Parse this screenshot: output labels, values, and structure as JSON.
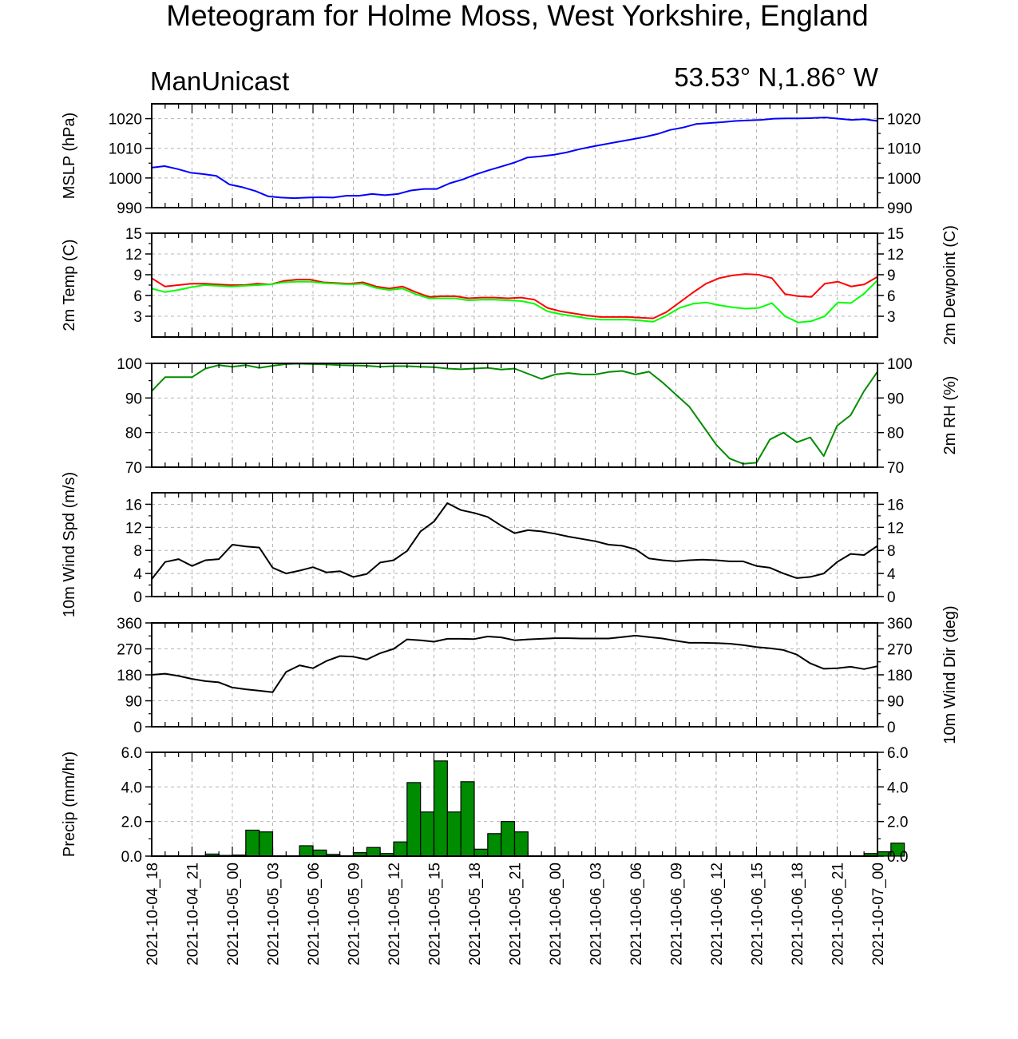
{
  "title": "Meteogram for Holme Moss, West Yorkshire, England",
  "model_label": "ManUnicast",
  "coords_label": "53.53° N,1.86° W",
  "colors": {
    "mslp": "#0000ff",
    "temp": "#ff0000",
    "dewpoint": "#00ff00",
    "rh": "#008c00",
    "wind": "#000000",
    "precip_fill": "#008c00",
    "grid": "#b4b4b4"
  },
  "chart_data": [
    {
      "type": "line",
      "ylabel_left": "MSLP (hPa)",
      "ylabel_right": "",
      "ylim": [
        990,
        1025
      ],
      "yticks": [
        990,
        1000,
        1010,
        1020
      ],
      "yticklabels": [
        "990",
        "1000",
        "1010",
        "1020"
      ],
      "grid": true,
      "series": [
        {
          "color": "mslp",
          "values": [
            1003.5,
            1004.0,
            1003.0,
            1001.8,
            1001.3,
            1000.7,
            997.8,
            996.9,
            995.6,
            993.8,
            993.4,
            993.2,
            993.4,
            993.5,
            993.4,
            994.0,
            994.0,
            994.6,
            994.2,
            994.6,
            995.8,
            996.3,
            996.3,
            998.2,
            999.5,
            1001.2,
            1002.6,
            1003.9,
            1005.2,
            1006.9,
            1007.3,
            1007.8,
            1008.6,
            1009.7,
            1010.6,
            1011.4,
            1012.2,
            1013.0,
            1013.8,
            1014.8,
            1016.2,
            1017.0,
            1018.2,
            1018.5,
            1018.8,
            1019.2,
            1019.4,
            1019.6,
            1020.0,
            1020.1,
            1020.1,
            1020.2,
            1020.4,
            1020.0,
            1019.6,
            1019.8,
            1019.2
          ]
        }
      ]
    },
    {
      "type": "line",
      "ylabel_left": "2m Temp (C)",
      "ylabel_right": "2m Dewpoint (C)",
      "ylim": [
        0,
        15
      ],
      "yticks": [
        3,
        6,
        9,
        12,
        15
      ],
      "yticklabels": [
        "3",
        "6",
        "9",
        "12",
        "15"
      ],
      "grid": true,
      "series": [
        {
          "color": "temp",
          "values": [
            8.5,
            7.3,
            7.5,
            7.7,
            7.7,
            7.6,
            7.5,
            7.5,
            7.7,
            7.6,
            8.1,
            8.3,
            8.3,
            7.9,
            7.8,
            7.7,
            7.9,
            7.3,
            7.0,
            7.3,
            6.5,
            5.8,
            5.9,
            5.9,
            5.6,
            5.7,
            5.7,
            5.6,
            5.7,
            5.4,
            4.2,
            3.7,
            3.4,
            3.1,
            2.9,
            2.9,
            2.9,
            2.8,
            2.7,
            3.6,
            5.0,
            6.4,
            7.7,
            8.5,
            8.9,
            9.1,
            9.0,
            8.5,
            6.2,
            5.9,
            5.8,
            7.7,
            8.0,
            7.3,
            7.6,
            8.7
          ]
        },
        {
          "color": "dewpoint",
          "values": [
            7.0,
            6.5,
            6.8,
            7.2,
            7.5,
            7.4,
            7.3,
            7.4,
            7.5,
            7.6,
            7.9,
            8.0,
            8.0,
            7.8,
            7.7,
            7.6,
            7.7,
            7.1,
            6.8,
            7.0,
            6.2,
            5.6,
            5.6,
            5.6,
            5.3,
            5.4,
            5.4,
            5.3,
            5.2,
            4.8,
            3.7,
            3.3,
            3.0,
            2.7,
            2.5,
            2.5,
            2.5,
            2.4,
            2.2,
            3.1,
            4.2,
            4.8,
            5.0,
            4.6,
            4.3,
            4.1,
            4.2,
            4.9,
            3.0,
            2.1,
            2.3,
            3.0,
            5.0,
            4.9,
            6.3,
            8.2
          ]
        }
      ]
    },
    {
      "type": "line",
      "ylabel_left": "",
      "ylabel_right": "2m RH (%)",
      "ylim": [
        70,
        100
      ],
      "yticks": [
        70,
        80,
        90,
        100
      ],
      "yticklabels": [
        "70",
        "80",
        "90",
        "100"
      ],
      "grid": true,
      "series": [
        {
          "color": "rh",
          "values": [
            92,
            96,
            96,
            96,
            98.5,
            99.5,
            99,
            99.5,
            98.7,
            99.3,
            99.8,
            99.9,
            99.8,
            99.7,
            99.5,
            99.4,
            99.3,
            99.0,
            99.2,
            99.2,
            99.0,
            98.9,
            98.5,
            98.3,
            98.5,
            98.7,
            98.2,
            98.5,
            97.0,
            95.5,
            96.8,
            97.2,
            96.8,
            96.8,
            97.5,
            97.8,
            96.8,
            97.6,
            94.5,
            91.0,
            87.5,
            82.0,
            76.5,
            72.5,
            71.0,
            71.3,
            78.0,
            80.0,
            77.2,
            78.6,
            73.2,
            82.0,
            85.0,
            92.0,
            97.6
          ]
        }
      ]
    },
    {
      "type": "line",
      "ylabel_left": "10m Wind Spd (m/s)",
      "ylabel_right": "",
      "ylim": [
        0,
        18
      ],
      "yticks": [
        0,
        4,
        8,
        12,
        16
      ],
      "yticklabels": [
        "0",
        "4",
        "8",
        "12",
        "16"
      ],
      "grid": true,
      "series": [
        {
          "color": "wind",
          "values": [
            3.0,
            6.0,
            6.5,
            5.3,
            6.3,
            6.5,
            9.0,
            8.7,
            8.5,
            5.0,
            4.0,
            4.5,
            5.1,
            4.2,
            4.4,
            3.4,
            3.9,
            5.9,
            6.3,
            7.9,
            11.3,
            13.0,
            16.2,
            15.0,
            14.5,
            13.8,
            12.3,
            11.0,
            11.5,
            11.3,
            10.9,
            10.4,
            10.0,
            9.6,
            9.0,
            8.8,
            8.2,
            6.6,
            6.3,
            6.1,
            6.3,
            6.4,
            6.3,
            6.1,
            6.1,
            5.3,
            5.0,
            4.0,
            3.2,
            3.4,
            4.0,
            6.0,
            7.4,
            7.2,
            8.8
          ]
        }
      ]
    },
    {
      "type": "line",
      "ylabel_left": "",
      "ylabel_right": "10m Wind Dir (deg)",
      "ylim": [
        0,
        360
      ],
      "yticks": [
        0,
        90,
        180,
        270,
        360
      ],
      "yticklabels": [
        "0",
        "90",
        "180",
        "270",
        "360"
      ],
      "grid": true,
      "series": [
        {
          "color": "wind",
          "values": [
            180,
            184,
            176,
            166,
            158,
            154,
            136,
            130,
            125,
            120,
            190,
            213,
            203,
            228,
            245,
            243,
            233,
            255,
            270,
            303,
            300,
            295,
            305,
            305,
            304,
            313,
            310,
            300,
            303,
            305,
            307,
            307,
            306,
            306,
            306,
            311,
            316,
            311,
            306,
            298,
            291,
            291,
            290,
            288,
            283,
            276,
            272,
            266,
            250,
            220,
            201,
            203,
            208,
            200,
            210
          ]
        }
      ]
    },
    {
      "type": "bar",
      "ylabel_left": "Precip (mm/hr)",
      "ylabel_right": "",
      "ylim": [
        0,
        6
      ],
      "yticks": [
        0,
        2,
        4,
        6
      ],
      "yticklabels": [
        "0.0",
        "2.0",
        "4.0",
        "6.0"
      ],
      "grid": true,
      "values": [
        0,
        0,
        0.02,
        0.01,
        0.12,
        0.04,
        0.06,
        1.5,
        1.4,
        0.02,
        0,
        0.6,
        0.35,
        0.1,
        0,
        0.2,
        0.5,
        0.15,
        0.82,
        4.25,
        2.55,
        5.5,
        2.55,
        4.3,
        0.4,
        1.3,
        2.0,
        1.4,
        0,
        0,
        0,
        0,
        0,
        0,
        0,
        0,
        0,
        0,
        0,
        0,
        0,
        0,
        0,
        0,
        0,
        0,
        0,
        0,
        0,
        0,
        0,
        0,
        0.02,
        0.15,
        0.25,
        0.75
      ]
    }
  ],
  "x_ticklabels": [
    "2021-10-04_18",
    "2021-10-04_21",
    "2021-10-05_00",
    "2021-10-05_03",
    "2021-10-05_06",
    "2021-10-05_09",
    "2021-10-05_12",
    "2021-10-05_15",
    "2021-10-05_18",
    "2021-10-05_21",
    "2021-10-06_00",
    "2021-10-06_03",
    "2021-10-06_06",
    "2021-10-06_09",
    "2021-10-06_12",
    "2021-10-06_15",
    "2021-10-06_18",
    "2021-10-06_21",
    "2021-10-07_00"
  ]
}
